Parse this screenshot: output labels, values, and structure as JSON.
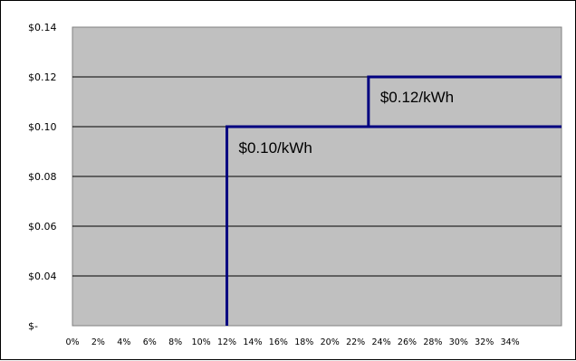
{
  "chart_data": {
    "type": "line",
    "title": "",
    "xlabel": "",
    "ylabel": "",
    "x_tick_labels": [
      "0%",
      "2%",
      "4%",
      "6%",
      "8%",
      "10%",
      "12%",
      "14%",
      "16%",
      "18%",
      "20%",
      "22%",
      "24%",
      "26%",
      "28%",
      "30%",
      "32%",
      "34%"
    ],
    "y_tick_labels": [
      "$-",
      "$0.04",
      "$0.06",
      "$0.08",
      "$0.10",
      "$0.12",
      "$0.14"
    ],
    "series": [
      {
        "x": [
          "12%",
          "12%",
          "23%",
          "23%",
          "38%"
        ],
        "y": [
          0.02,
          0.1,
          0.1,
          0.12,
          0.12
        ]
      },
      {
        "x": [
          "23%",
          "38%"
        ],
        "y": [
          0.1,
          0.1
        ]
      }
    ],
    "annotations": [
      {
        "text": "$0.10/kWh"
      },
      {
        "text": "$0.12/kWh"
      }
    ],
    "ylim": [
      0.02,
      0.14
    ],
    "xlim": [
      "0%",
      "38%"
    ],
    "grid": true,
    "colors": {
      "plot_background": "#c0c0c0",
      "line": "#000080",
      "grid": "#000000"
    }
  }
}
